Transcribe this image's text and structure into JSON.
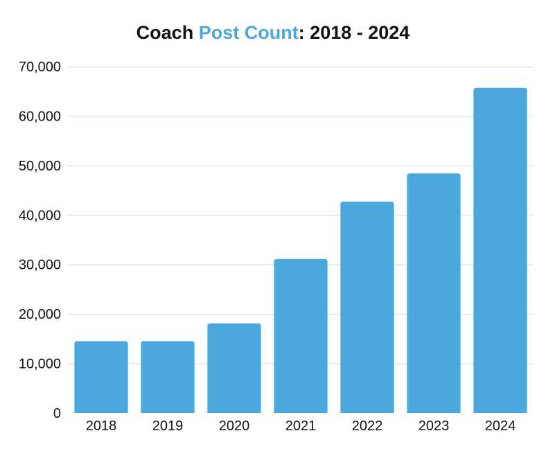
{
  "chart_data": {
    "type": "bar",
    "title_parts": [
      {
        "text": "Coach ",
        "color": "#111111"
      },
      {
        "text": "Post Count",
        "color": "#4aa8de"
      },
      {
        "text": ": 2018 - 2024",
        "color": "#111111"
      }
    ],
    "xlabel": "",
    "ylabel": "",
    "categories": [
      "2018",
      "2019",
      "2020",
      "2021",
      "2022",
      "2023",
      "2024"
    ],
    "values": [
      14500,
      14500,
      18100,
      31100,
      42700,
      48400,
      65700
    ],
    "ylim": [
      0,
      70000
    ],
    "yticks": [
      0,
      10000,
      20000,
      30000,
      40000,
      50000,
      60000,
      70000
    ],
    "ytick_labels": [
      "0",
      "10,000",
      "20,000",
      "30,000",
      "40,000",
      "50,000",
      "60,000",
      "70,000"
    ],
    "grid": true,
    "bar_color": "#4aa8de"
  }
}
